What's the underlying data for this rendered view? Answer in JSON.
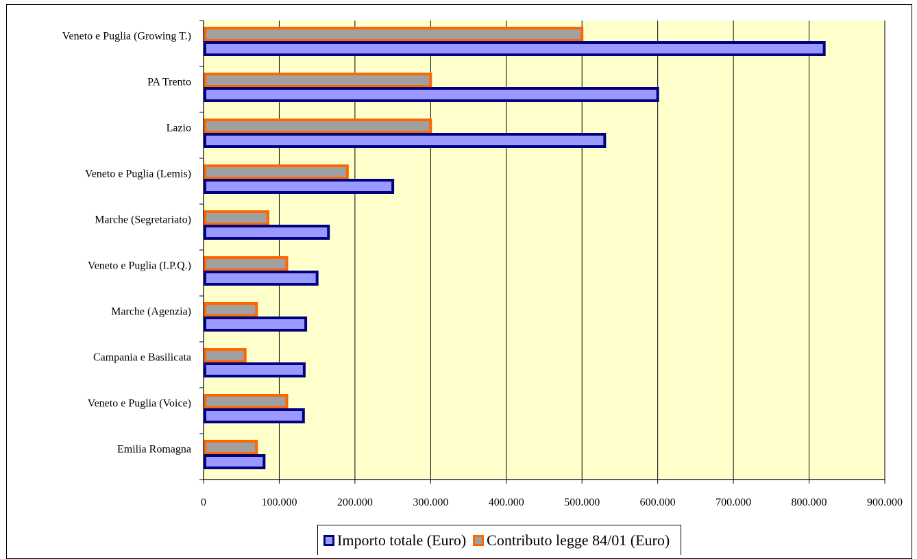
{
  "chart_data": {
    "type": "bar",
    "orientation": "horizontal",
    "categories": [
      "Veneto e Puglia (Growing T.)",
      "PA Trento",
      "Lazio",
      "Veneto e Puglia (Lemis)",
      "Marche (Segretariato)",
      "Veneto e Puglia (I.P.Q.)",
      "Marche (Agenzia)",
      "Campania e Basilicata",
      "Veneto e Puglia (Voice)",
      "Emilia Romagna"
    ],
    "series": [
      {
        "name": "Importo totale (Euro)",
        "values": [
          820000,
          600000,
          530000,
          250000,
          165000,
          150000,
          135000,
          133000,
          132000,
          80000
        ],
        "fill": "#9999ff",
        "stroke": "#000080"
      },
      {
        "name": "Contributo legge 84/01 (Euro)",
        "values": [
          500000,
          300000,
          300000,
          190000,
          85000,
          110000,
          70000,
          55000,
          110000,
          70000
        ],
        "fill": "#a0a0a0",
        "stroke": "#ff6600"
      }
    ],
    "xlim": [
      0,
      900000
    ],
    "x_ticks": [
      "0",
      "100.000",
      "200.000",
      "300.000",
      "400.000",
      "500.000",
      "600.000",
      "700.000",
      "800.000",
      "900.000"
    ],
    "grid": "vertical",
    "plot_background": "#ffffcc",
    "legend": "bottom",
    "title": "",
    "xlabel": "",
    "ylabel": ""
  }
}
